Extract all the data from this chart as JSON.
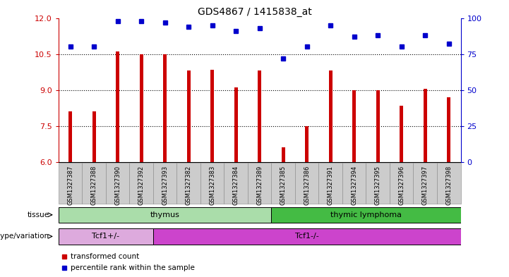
{
  "title": "GDS4867 / 1415838_at",
  "samples": [
    "GSM1327387",
    "GSM1327388",
    "GSM1327390",
    "GSM1327392",
    "GSM1327393",
    "GSM1327382",
    "GSM1327383",
    "GSM1327384",
    "GSM1327389",
    "GSM1327385",
    "GSM1327386",
    "GSM1327391",
    "GSM1327394",
    "GSM1327395",
    "GSM1327396",
    "GSM1327397",
    "GSM1327398"
  ],
  "bar_values": [
    8.1,
    8.1,
    10.6,
    10.5,
    10.5,
    9.8,
    9.85,
    9.1,
    9.8,
    6.6,
    7.5,
    9.8,
    9.0,
    9.0,
    8.35,
    9.05,
    8.7
  ],
  "dot_values": [
    80,
    80,
    98,
    98,
    97,
    94,
    95,
    91,
    93,
    72,
    80,
    95,
    87,
    88,
    80,
    88,
    82
  ],
  "ylim_left": [
    6,
    12
  ],
  "ylim_right": [
    0,
    100
  ],
  "yticks_left": [
    6,
    7.5,
    9,
    10.5,
    12
  ],
  "yticks_right": [
    0,
    25,
    50,
    75,
    100
  ],
  "bar_color": "#cc0000",
  "dot_color": "#0000cc",
  "tissue_groups": [
    {
      "label": "thymus",
      "start": 0,
      "end": 9,
      "color": "#aaddaa"
    },
    {
      "label": "thymic lymphoma",
      "start": 9,
      "end": 17,
      "color": "#44bb44"
    }
  ],
  "genotype_groups": [
    {
      "label": "Tcf1+/-",
      "start": 0,
      "end": 4,
      "color": "#ddaadd"
    },
    {
      "label": "Tcf1-/-",
      "start": 4,
      "end": 17,
      "color": "#cc44cc"
    }
  ],
  "tissue_label": "tissue",
  "genotype_label": "genotype/variation",
  "legend_bar": "transformed count",
  "legend_dot": "percentile rank within the sample",
  "tick_bg_color": "#cccccc",
  "right_axis_color": "#0000cc",
  "left_axis_color": "#cc0000",
  "bg_color": "#ffffff"
}
